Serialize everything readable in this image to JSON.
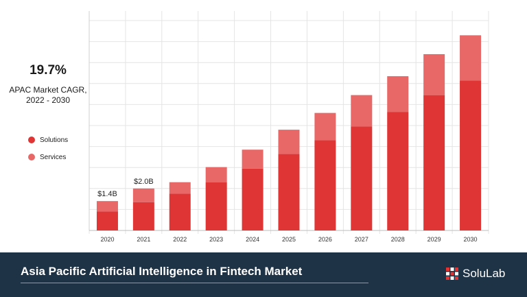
{
  "summary": {
    "cagr_value": "19.7%",
    "cagr_label": "APAC Market CAGR,\n2022 - 2030"
  },
  "legend": {
    "items": [
      {
        "label": "Solutions",
        "color": "#e03535"
      },
      {
        "label": "Services",
        "color": "#e86868"
      }
    ]
  },
  "footer": {
    "title": "Asia Pacific Artificial Intelligence in Fintech Market",
    "brand": "SoluLab"
  },
  "chart_data": {
    "type": "bar",
    "stacked": true,
    "categories": [
      "2020",
      "2021",
      "2022",
      "2023",
      "2024",
      "2025",
      "2026",
      "2027",
      "2028",
      "2029",
      "2030"
    ],
    "series": [
      {
        "name": "Solutions",
        "color": "#e03535",
        "values": [
          0.9,
          1.35,
          1.75,
          2.3,
          2.95,
          3.65,
          4.3,
          4.95,
          5.65,
          6.45,
          7.15
        ]
      },
      {
        "name": "Services",
        "color": "#e86868",
        "values": [
          0.5,
          0.65,
          0.55,
          0.72,
          0.9,
          1.15,
          1.3,
          1.5,
          1.7,
          1.95,
          2.15
        ]
      }
    ],
    "data_labels": [
      {
        "category": "2020",
        "text": "$1.4B"
      },
      {
        "category": "2021",
        "text": "$2.0B"
      }
    ],
    "ylim": [
      0,
      10
    ],
    "grid": true,
    "legend_position": "left"
  }
}
